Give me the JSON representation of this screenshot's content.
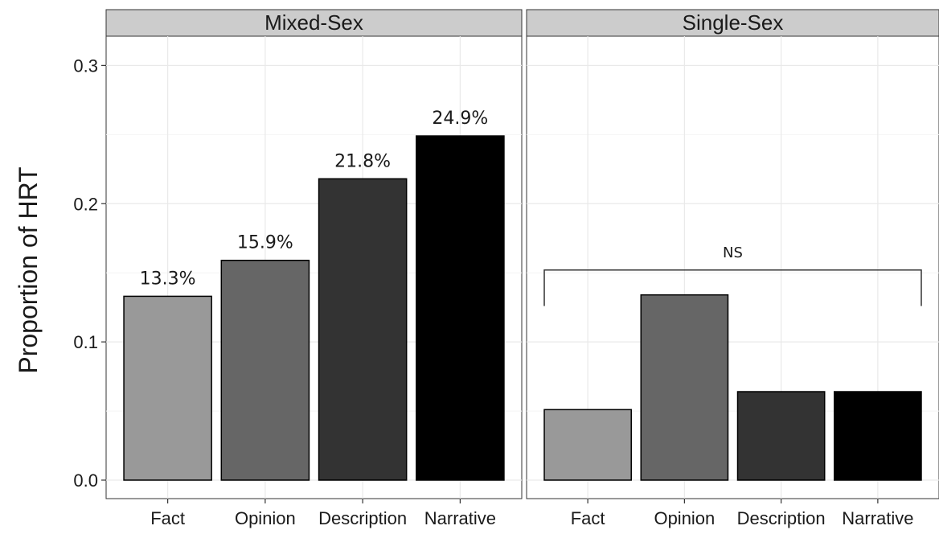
{
  "chart_data": {
    "type": "bar",
    "ylabel": "Proportion of HRT",
    "xlabel": "",
    "ylim": [
      0,
      0.32
    ],
    "yticks": [
      0.0,
      0.1,
      0.2,
      0.3
    ],
    "ytick_labels": [
      "0.0",
      "0.1",
      "0.2",
      "0.3"
    ],
    "grid": true,
    "categories": [
      "Fact",
      "Opinion",
      "Description",
      "Narrative"
    ],
    "colors": [
      "#999999",
      "#666666",
      "#333333",
      "#000000"
    ],
    "panels": [
      {
        "title": "Mixed-Sex",
        "values": [
          0.133,
          0.159,
          0.218,
          0.249
        ],
        "labels": [
          "13.3%",
          "15.9%",
          "21.8%",
          "24.9%"
        ]
      },
      {
        "title": "Single-Sex",
        "values": [
          0.051,
          0.134,
          0.064,
          0.064
        ],
        "labels": [],
        "annotation": "NS",
        "annotation_level": 0.152,
        "annotation_drop": 0.126
      }
    ]
  }
}
